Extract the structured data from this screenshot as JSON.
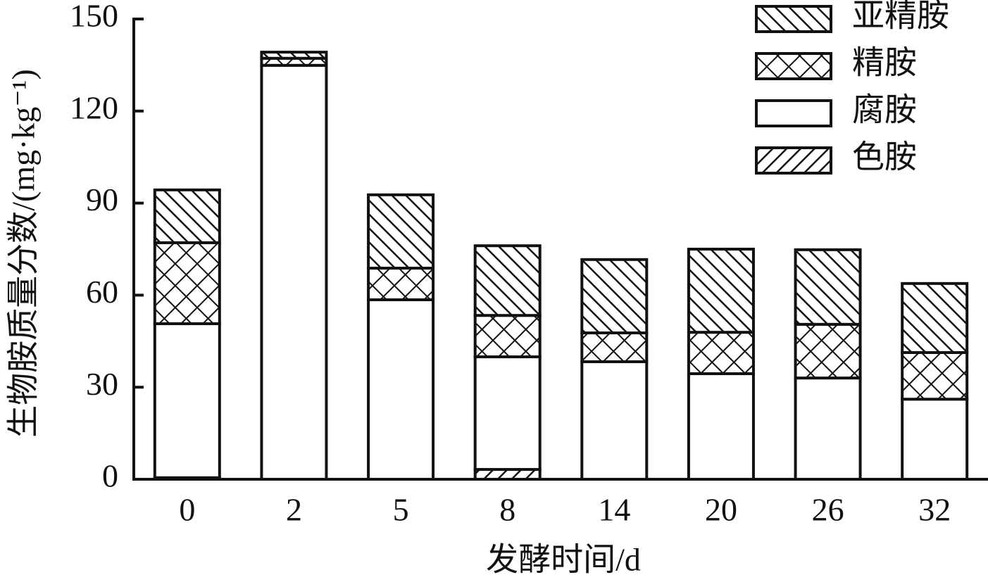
{
  "chart_data": {
    "type": "stacked_bar",
    "xlabel": "发酵时间/d",
    "ylabel": "生物胺质量分数/(mg·kg⁻¹)",
    "categories": [
      "0",
      "2",
      "5",
      "8",
      "14",
      "20",
      "26",
      "32"
    ],
    "series": [
      {
        "name": "色胺",
        "color": "#ffffff",
        "hatch": "/",
        "values": [
          0.5,
          0,
          0,
          3.2,
          0,
          0,
          0,
          0
        ]
      },
      {
        "name": "腐胺",
        "color": "#ffffff",
        "hatch": "",
        "values": [
          50.2,
          134.9,
          58.5,
          36.7,
          38.3,
          34.4,
          33.0,
          26.1
        ]
      },
      {
        "name": "精胺",
        "color": "#ffffff",
        "hatch": "x",
        "values": [
          26.4,
          2.3,
          10.3,
          13.5,
          9.4,
          13.5,
          17.5,
          15.2
        ]
      },
      {
        "name": "亚精胺",
        "color": "#ffffff",
        "hatch": "\\",
        "values": [
          17.2,
          2.0,
          23.9,
          22.7,
          23.9,
          27.1,
          24.3,
          22.5
        ]
      }
    ],
    "ylim": [
      0,
      150
    ],
    "yticks": [
      0,
      30,
      60,
      90,
      120,
      150
    ],
    "legend": "upper right",
    "grid": false
  }
}
